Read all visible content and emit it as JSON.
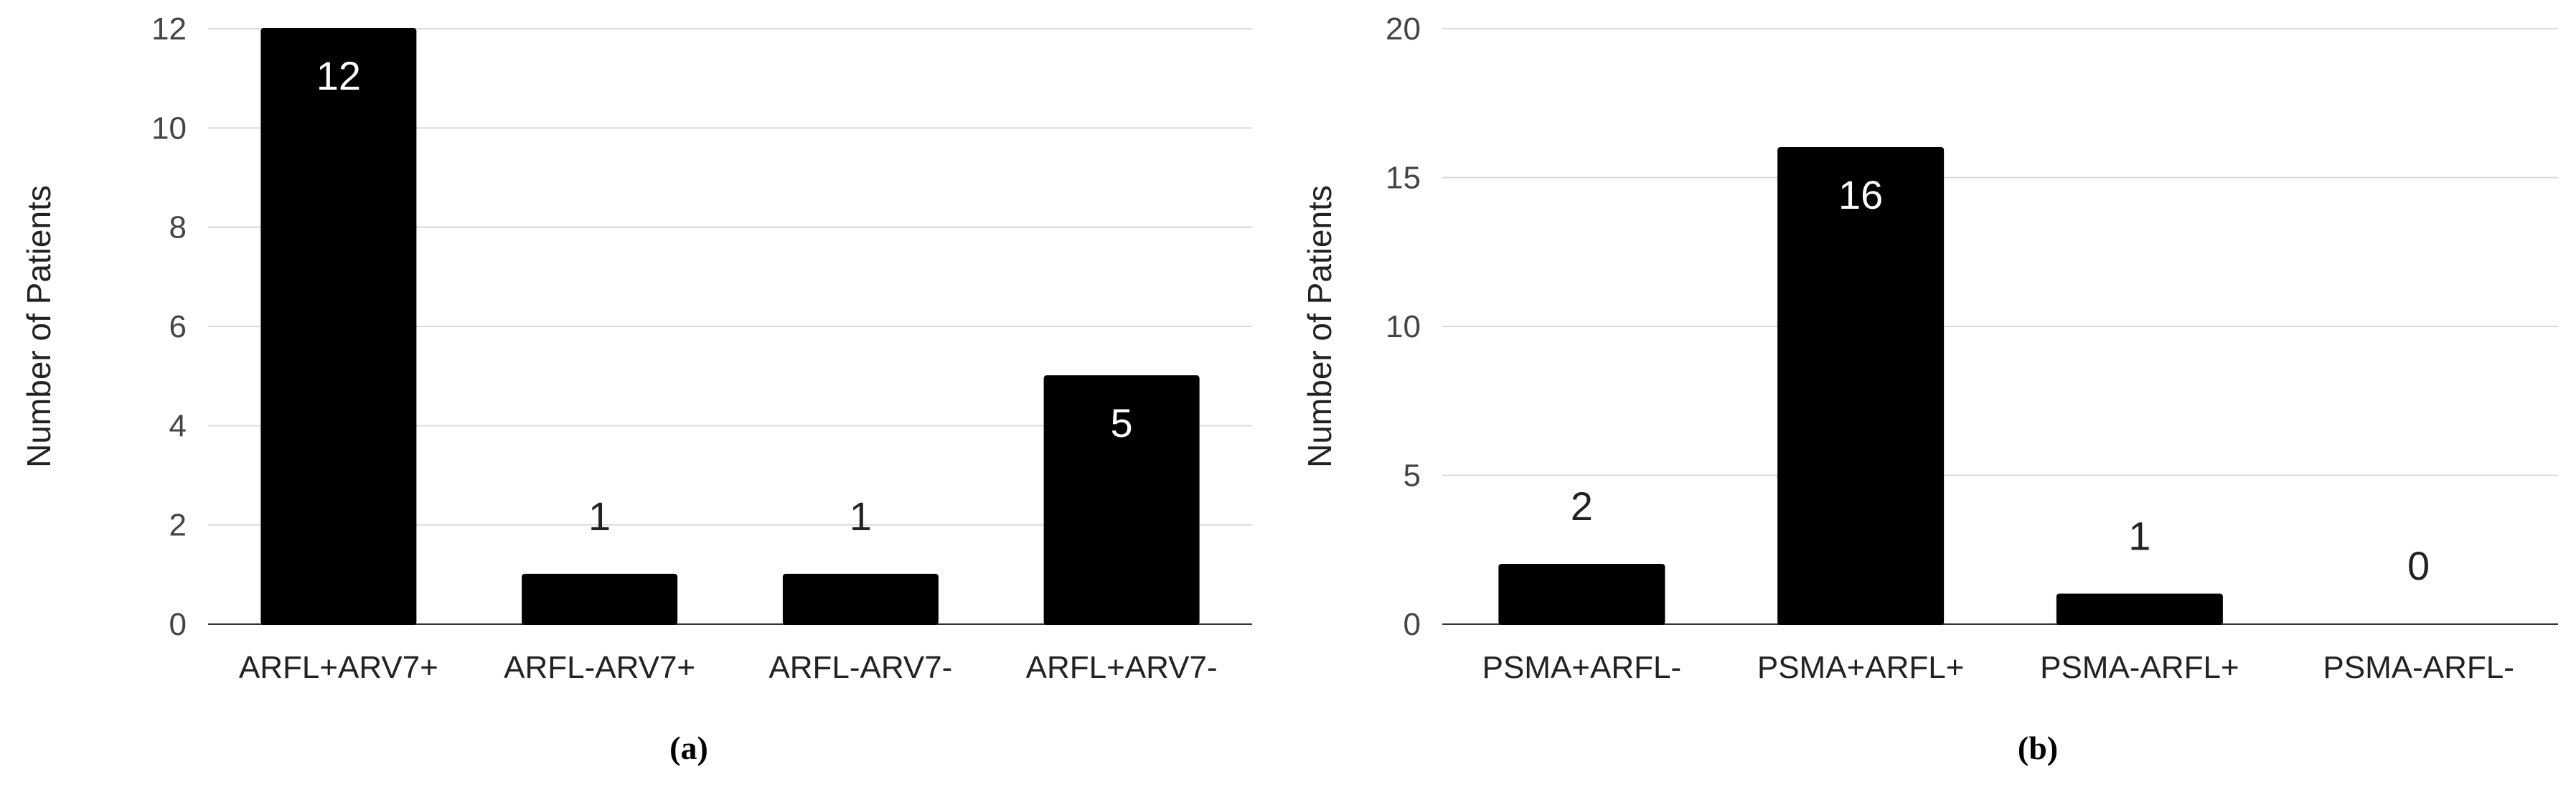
{
  "chart_data": [
    {
      "type": "bar",
      "caption": "(a)",
      "categories": [
        "ARFL+ARV7+",
        "ARFL-ARV7+",
        "ARFL-ARV7-",
        "ARFL+ARV7-"
      ],
      "values": [
        12,
        1,
        1,
        5
      ],
      "data_labels": [
        "12",
        "1",
        "1",
        "5"
      ],
      "ylabel": "Number of Patients",
      "ylim": [
        0,
        12
      ],
      "yticks": [
        0,
        2,
        4,
        6,
        8,
        10,
        12
      ],
      "grid": true,
      "bar_color": "#000000"
    },
    {
      "type": "bar",
      "caption": "(b)",
      "categories": [
        "PSMA+ARFL-",
        "PSMA+ARFL+",
        "PSMA-ARFL+",
        "PSMA-ARFL-"
      ],
      "values": [
        2,
        16,
        1,
        0
      ],
      "data_labels": [
        "2",
        "16",
        "1",
        "0"
      ],
      "ylabel": "Number of Patients",
      "ylim": [
        0,
        20
      ],
      "yticks": [
        0,
        5,
        10,
        15,
        20
      ],
      "grid": true,
      "bar_color": "#000000"
    }
  ]
}
